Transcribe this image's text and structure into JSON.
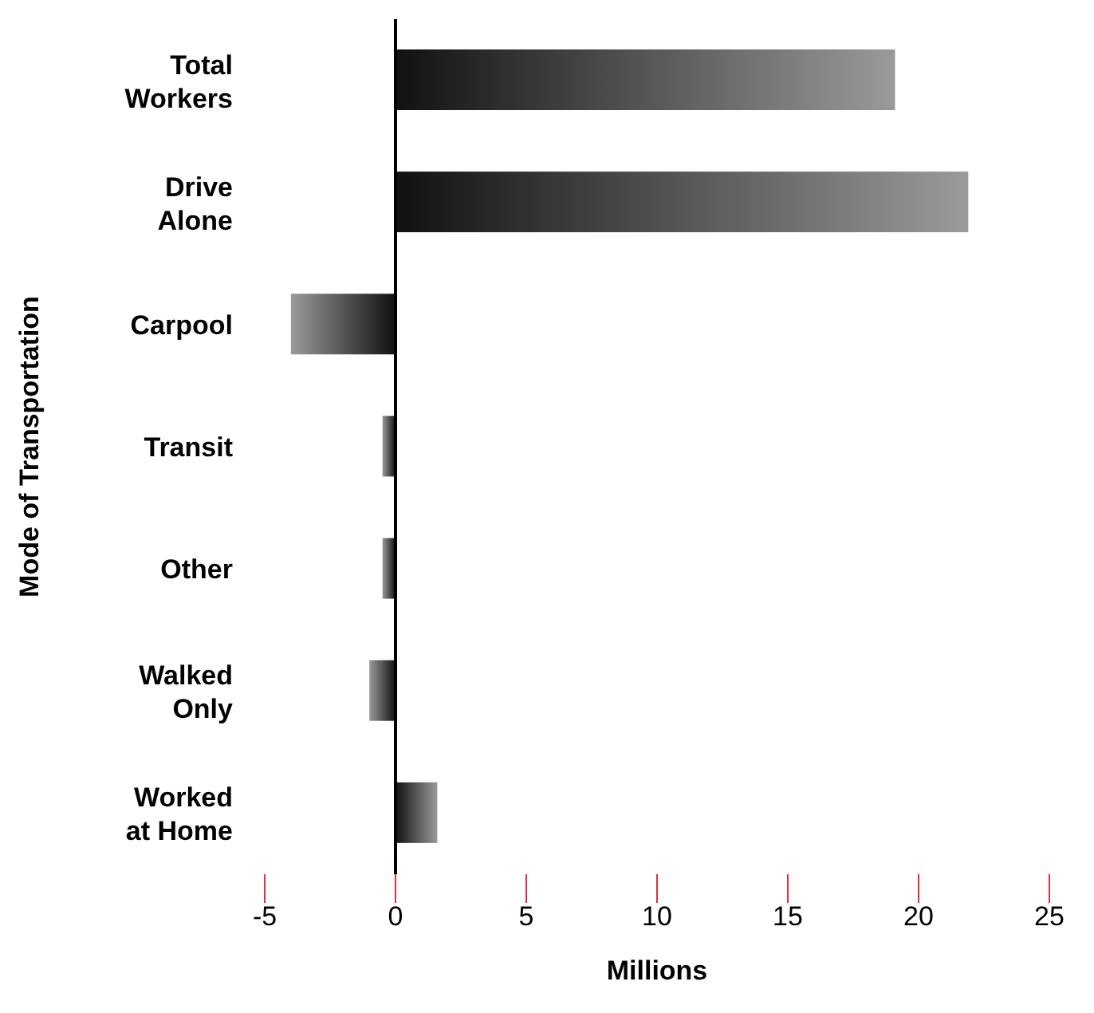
{
  "chart_data": {
    "type": "bar",
    "orientation": "horizontal",
    "ylabel": "Mode of Transportation",
    "xlabel": "Millions",
    "categories": [
      "Total Workers",
      "Drive Alone",
      "Carpool",
      "Transit",
      "Other",
      "Walked Only",
      "Worked at Home"
    ],
    "values": [
      19.1,
      21.9,
      -4.0,
      -0.5,
      -0.5,
      -1.0,
      1.6
    ],
    "color": "#9a9a9a",
    "xlim": [
      -5,
      25
    ],
    "xticks": [
      -5,
      0,
      5,
      10,
      15,
      20,
      25
    ],
    "ref_lines": [
      {
        "axis": "x",
        "value": 0,
        "color": "#000000"
      }
    ]
  }
}
